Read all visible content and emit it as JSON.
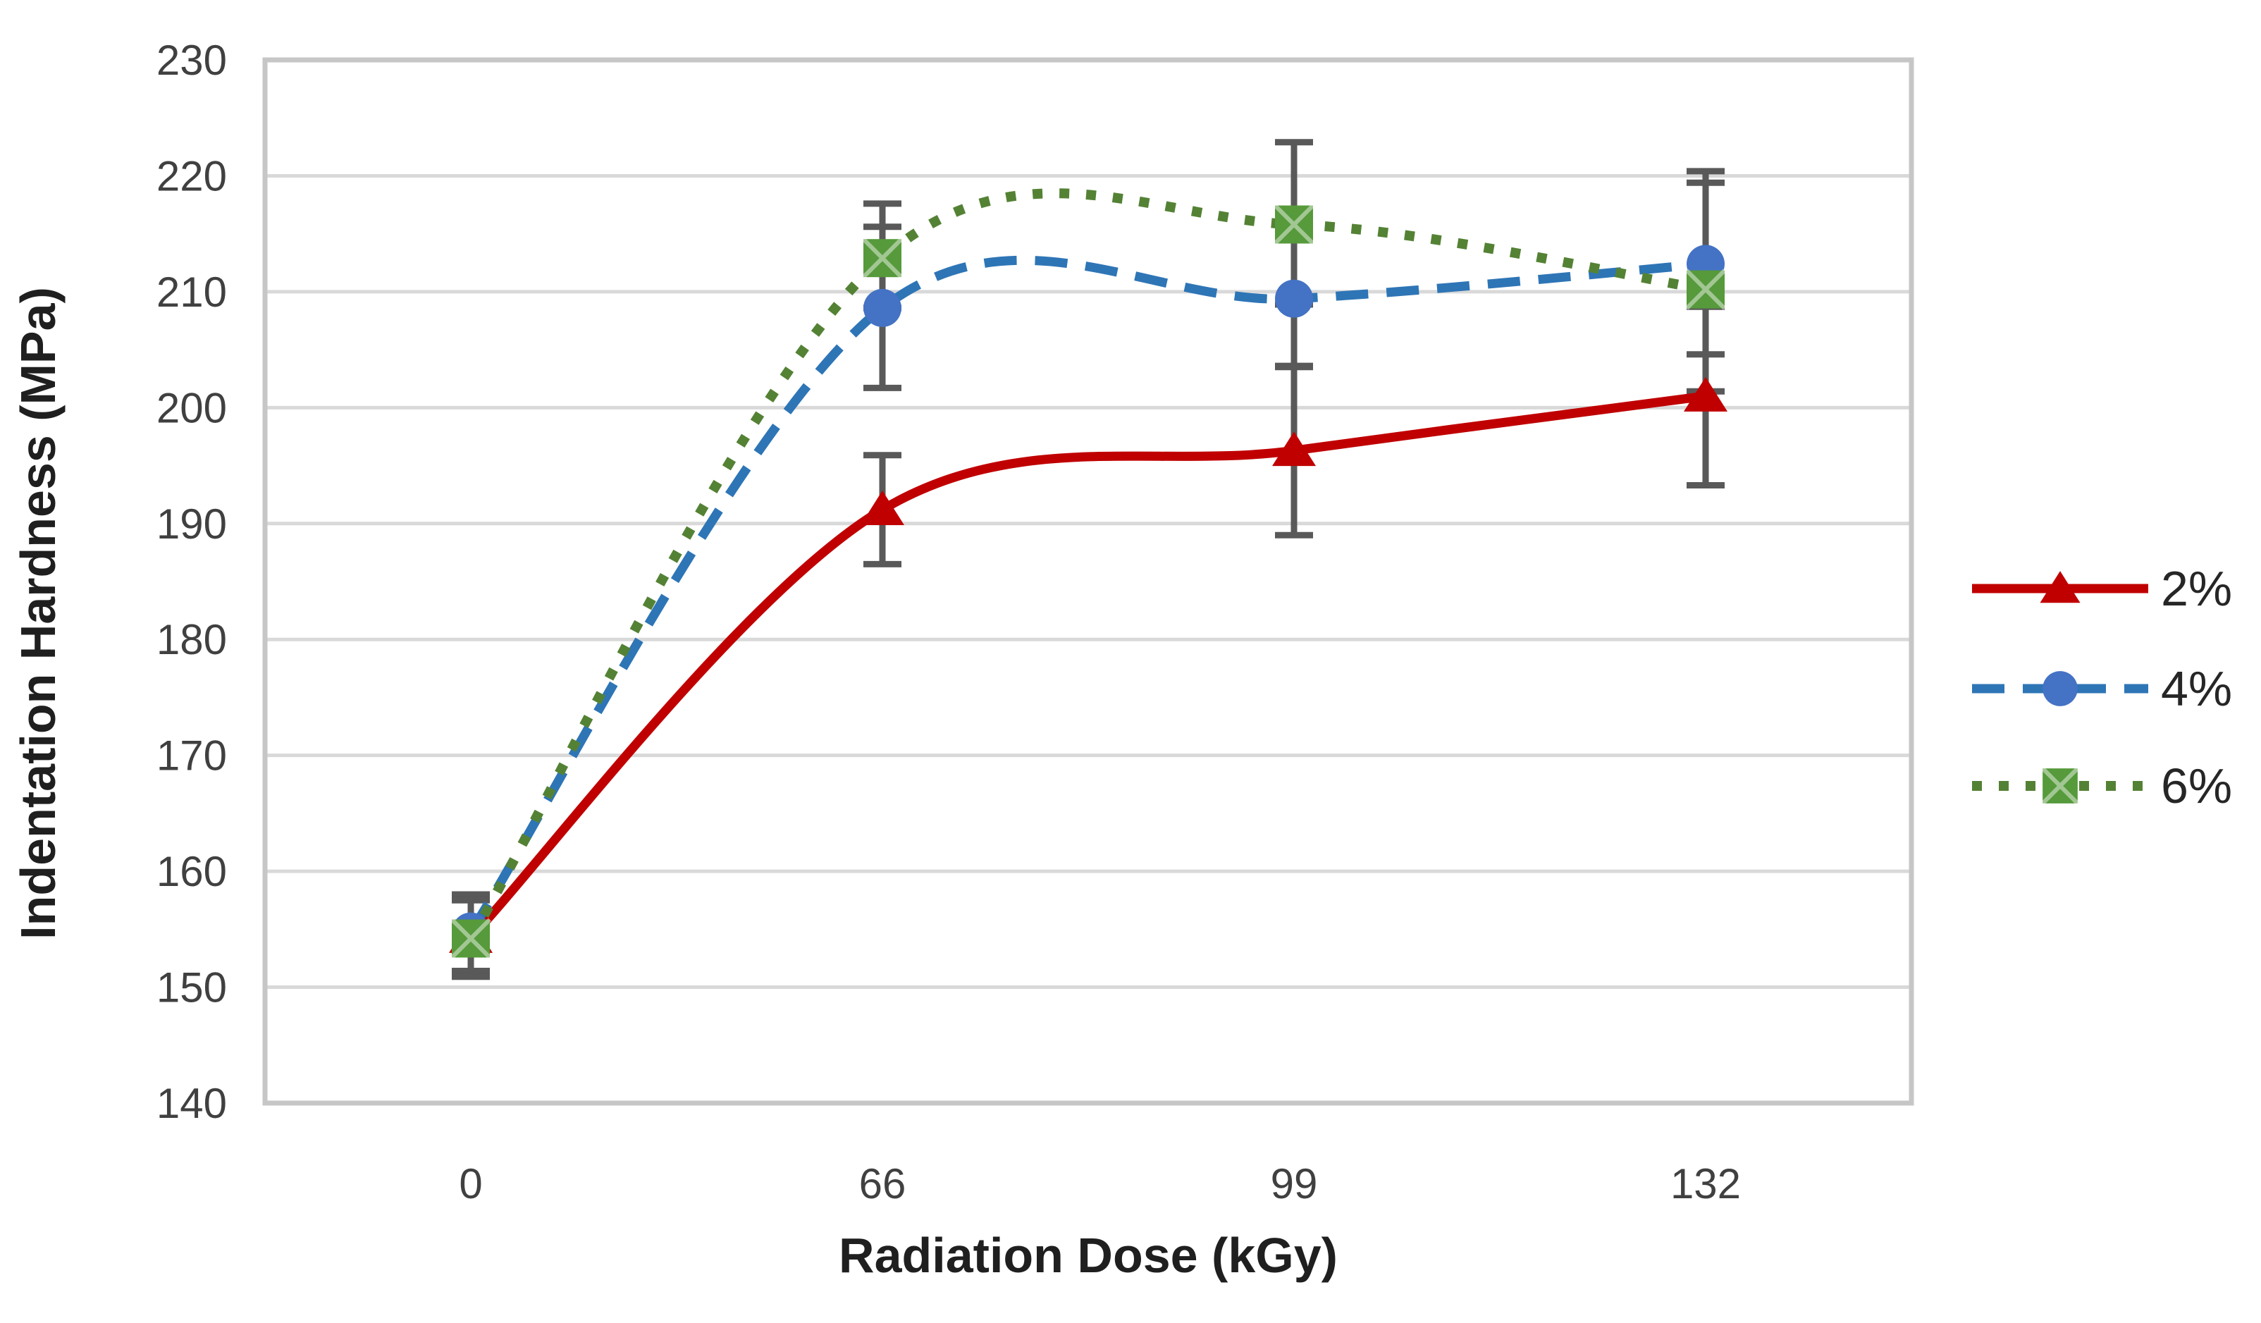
{
  "chart_data": {
    "type": "line",
    "title": "",
    "xlabel": "Radiation Dose (kGy)",
    "ylabel": "Indentation Hardness (MPa)",
    "categories": [
      0,
      66,
      99,
      132
    ],
    "x_tick_labels": [
      "0",
      "66",
      "99",
      "132"
    ],
    "y_ticks": [
      230,
      220,
      210,
      200,
      190,
      180,
      170,
      160,
      150,
      140
    ],
    "ylim": [
      140,
      230
    ],
    "grid": "horizontal-only",
    "smooth_lines": true,
    "legend_position": "right",
    "series": [
      {
        "name": "2%",
        "line_style": "solid",
        "marker": "triangle",
        "color": "#C00000",
        "marker_color": "#C00000",
        "values": [
          154.3,
          191.2,
          196.3,
          201.0
        ],
        "error_low": [
          151.0,
          186.5,
          189.0,
          193.3
        ],
        "error_high": [
          157.5,
          195.9,
          203.6,
          208.7
        ]
      },
      {
        "name": "4%",
        "line_style": "dashed",
        "marker": "circle",
        "color": "#2E75B6",
        "marker_color": "#4472C4",
        "values": [
          154.8,
          208.6,
          209.4,
          212.4
        ],
        "error_low": [
          151.4,
          201.7,
          203.5,
          204.6
        ],
        "error_high": [
          158.0,
          215.6,
          215.4,
          220.4
        ]
      },
      {
        "name": "6%",
        "line_style": "dotted",
        "marker": "square",
        "color": "#548235",
        "marker_color": "#569A3B",
        "values": [
          154.2,
          212.9,
          215.8,
          210.2
        ],
        "error_low": [
          150.9,
          208.6,
          208.9,
          201.4
        ],
        "error_high": [
          157.6,
          217.6,
          222.9,
          219.4
        ]
      }
    ],
    "colors": {
      "background": "#FFFFFF",
      "gridline": "#D9D9D9",
      "plot_border": "#C6C6C6",
      "error_bar": "#595959",
      "tick_text": "#404040",
      "title_text": "#1F1F1F"
    }
  }
}
